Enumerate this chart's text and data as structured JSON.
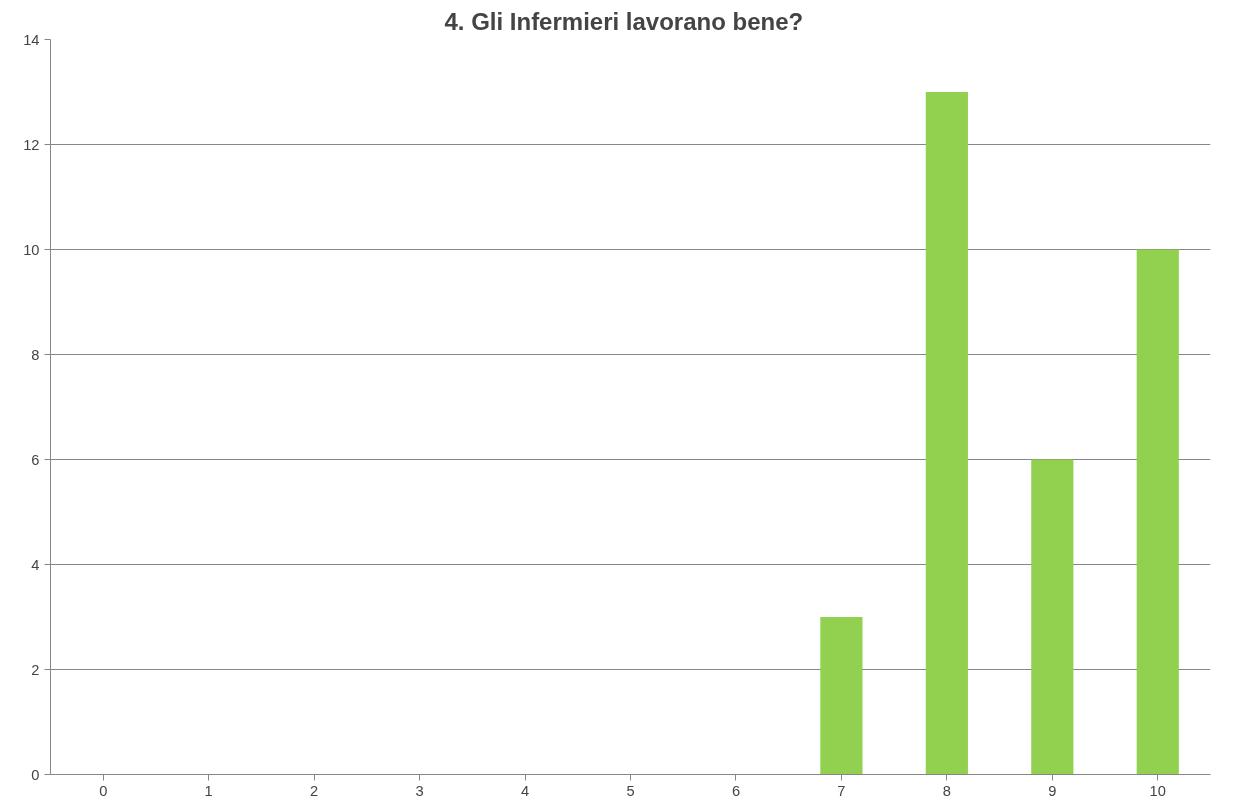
{
  "chart_data": {
    "type": "bar",
    "title": "4.   Gli Infermieri lavorano bene?",
    "categories": [
      "0",
      "1",
      "2",
      "3",
      "4",
      "5",
      "6",
      "7",
      "8",
      "9",
      "10"
    ],
    "values": [
      0,
      0,
      0,
      0,
      0,
      0,
      0,
      3,
      13,
      6,
      10
    ],
    "color": "#92d050",
    "ylim": [
      0,
      14
    ],
    "yticks": [
      0,
      2,
      4,
      6,
      8,
      10,
      12,
      14
    ],
    "grid": "y"
  }
}
